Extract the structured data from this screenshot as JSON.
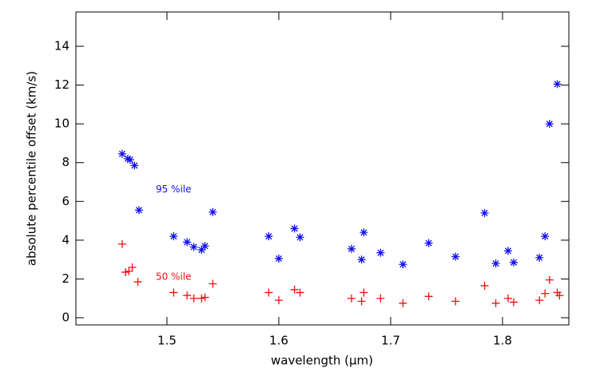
{
  "chart_data": {
    "type": "scatter",
    "xlabel": "wavelength (μm)",
    "ylabel": "absolute percentile offset (km/s)",
    "xlim": [
      1.4186,
      1.8593
    ],
    "ylim": [
      -0.37,
      15.77
    ],
    "xticks": [
      1.5,
      1.6,
      1.7,
      1.8
    ],
    "yticks": [
      0,
      2,
      4,
      6,
      8,
      10,
      12,
      14
    ],
    "series": [
      {
        "color": "#1010ee",
        "marker": "asterisk",
        "x": [
          1.46,
          1.465,
          1.467,
          1.471,
          1.475,
          1.506,
          1.518,
          1.524,
          1.531,
          1.534,
          1.541,
          1.591,
          1.6,
          1.614,
          1.619,
          1.665,
          1.674,
          1.676,
          1.691,
          1.711,
          1.734,
          1.758,
          1.784,
          1.794,
          1.805,
          1.81,
          1.833,
          1.838,
          1.842,
          1.849
        ],
        "values": [
          8.45,
          8.2,
          8.15,
          7.85,
          5.55,
          4.2,
          3.9,
          3.65,
          3.5,
          3.7,
          5.45,
          4.2,
          3.05,
          4.6,
          4.15,
          3.55,
          3.0,
          4.4,
          3.35,
          2.75,
          3.85,
          3.15,
          5.4,
          2.8,
          3.45,
          2.85,
          3.1,
          4.2,
          10.0,
          12.05
        ]
      },
      {
        "color": "#ee1010",
        "marker": "plus",
        "x": [
          1.46,
          1.463,
          1.466,
          1.469,
          1.474,
          1.506,
          1.518,
          1.524,
          1.531,
          1.534,
          1.541,
          1.591,
          1.6,
          1.614,
          1.619,
          1.665,
          1.674,
          1.676,
          1.691,
          1.711,
          1.734,
          1.758,
          1.784,
          1.794,
          1.805,
          1.81,
          1.833,
          1.838,
          1.842,
          1.849,
          1.851
        ],
        "values": [
          3.8,
          2.35,
          2.4,
          2.6,
          1.85,
          1.3,
          1.15,
          1.0,
          1.0,
          1.05,
          1.75,
          1.3,
          0.9,
          1.45,
          1.3,
          1.0,
          0.85,
          1.3,
          1.0,
          0.75,
          1.1,
          0.85,
          1.65,
          0.75,
          1.0,
          0.8,
          0.9,
          1.25,
          1.95,
          1.3,
          1.15
        ]
      }
    ],
    "annotations": [
      {
        "text": "95 %ile",
        "x": 1.49,
        "y": 6.6,
        "color": "#1010ee"
      },
      {
        "text": "50 %ile",
        "x": 1.49,
        "y": 2.1,
        "color": "#ee1010"
      }
    ]
  }
}
